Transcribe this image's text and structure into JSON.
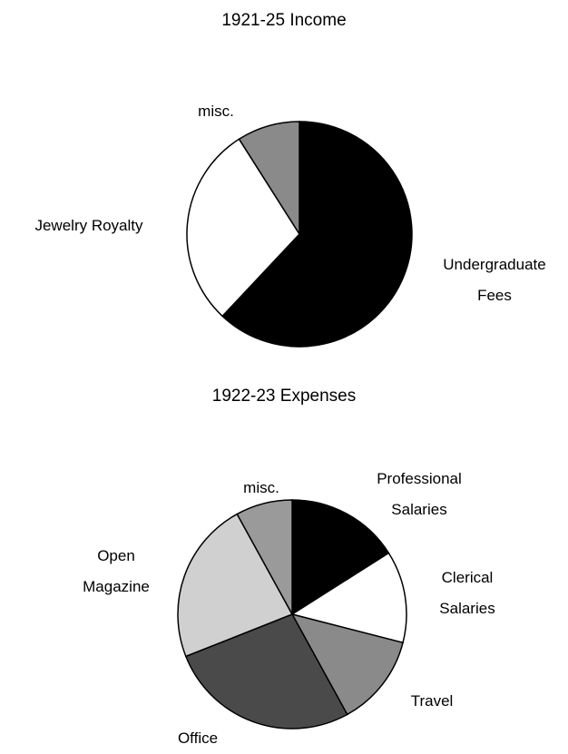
{
  "chart_data": [
    {
      "type": "pie",
      "title": "1921-25 Income",
      "categories": [
        "Undergraduate Fees",
        "Jewelry Royalty",
        "misc."
      ],
      "values": [
        62,
        29,
        9
      ],
      "colors": [
        "#000000",
        "#ffffff",
        "#8a8a8a"
      ]
    },
    {
      "type": "pie",
      "title": "1922-23 Expenses",
      "categories": [
        "Professional Salaries",
        "Clerical Salaries",
        "Travel",
        "Office",
        "Open Magazine",
        "misc."
      ],
      "values": [
        16,
        13,
        13,
        27,
        23,
        8
      ],
      "colors": [
        "#000000",
        "#ffffff",
        "#8a8a8a",
        "#4a4a4a",
        "#d0d0d0",
        "#9a9a9a"
      ]
    }
  ]
}
